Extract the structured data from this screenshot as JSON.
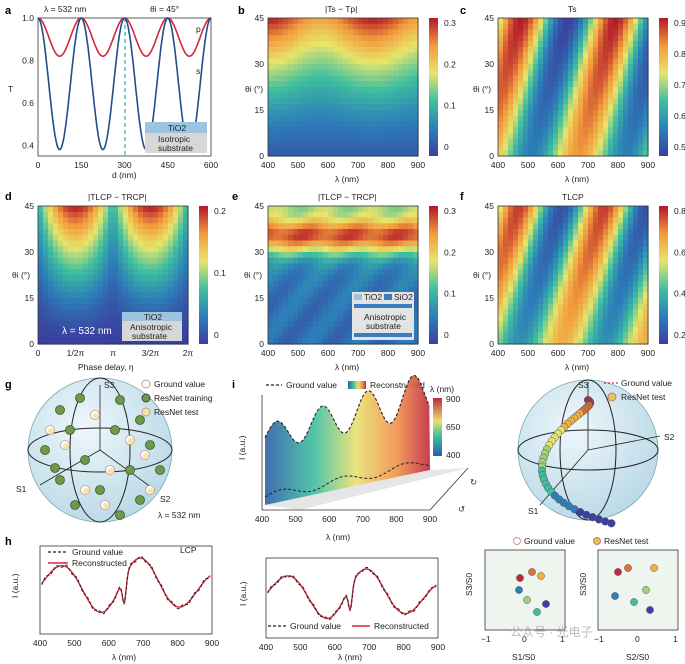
{
  "colors": {
    "red": "#d7263d",
    "blue": "#1f4e8c",
    "teal": "#2aa6a6",
    "ground": "#222222"
  },
  "panels": {
    "a": {
      "label": "a",
      "lambda_label": "λ = 532 nm",
      "theta_label": "θi = 45°",
      "ylabel": "T",
      "xlabel": "d (nm)",
      "curve_p": "p",
      "curve_s": "s",
      "box_top": "TiO2",
      "box_bottom_1": "Isotropic",
      "box_bottom_2": "substrate",
      "xticks": [
        "0",
        "150",
        "300",
        "450",
        "600"
      ],
      "yticks": [
        "0.4",
        "0.6",
        "0.8",
        "1.0"
      ]
    },
    "b": {
      "label": "b",
      "title": "|Ts − Tp|",
      "xlabel": "λ (nm)",
      "ylabel": "θi (°)",
      "xticks": [
        "400",
        "500",
        "600",
        "700",
        "800",
        "900"
      ],
      "yticks": [
        "0",
        "15",
        "30",
        "45"
      ],
      "cbticks": [
        "0.3",
        "0.2",
        "0.1",
        "0"
      ]
    },
    "c": {
      "label": "c",
      "title": "Ts",
      "xlabel": "λ (nm)",
      "ylabel": "θi (°)",
      "xticks": [
        "400",
        "500",
        "600",
        "700",
        "800",
        "900"
      ],
      "yticks": [
        "0",
        "15",
        "30",
        "45"
      ],
      "cbticks": [
        "0.9",
        "0.8",
        "0.7",
        "0.6",
        "0.5"
      ]
    },
    "d": {
      "label": "d",
      "title": "|TLCP − TRCP|",
      "xlabel": "Phase delay, η",
      "ylabel": "θi (°)",
      "lambda_label": "λ = 532 nm",
      "box_top": "TiO2",
      "box_bottom_1": "Anisotropic",
      "box_bottom_2": "substrate",
      "xticks": [
        "0",
        "1/2π",
        "π",
        "3/2π",
        "2π"
      ],
      "yticks": [
        "0",
        "15",
        "30",
        "45"
      ],
      "cbticks": [
        "0.2",
        "0.1",
        "0"
      ]
    },
    "e": {
      "label": "e",
      "title": "|TLCP − TRCP|",
      "xlabel": "λ (nm)",
      "ylabel": "θi (°)",
      "box_tio2": "TiO2",
      "box_sio2": "SiO2",
      "box_bottom_1": "Anisotropic",
      "box_bottom_2": "substrate",
      "xticks": [
        "400",
        "500",
        "600",
        "700",
        "800",
        "900"
      ],
      "yticks": [
        "0",
        "15",
        "30",
        "45"
      ],
      "cbticks": [
        "0.3",
        "0.2",
        "0.1",
        "0"
      ]
    },
    "f": {
      "label": "f",
      "title": "TLCP",
      "xlabel": "λ (nm)",
      "ylabel": "θi (°)",
      "xticks": [
        "400",
        "500",
        "600",
        "700",
        "800",
        "900"
      ],
      "yticks": [
        "0",
        "15",
        "30",
        "45"
      ],
      "cbticks": [
        "0.8",
        "0.6",
        "0.4",
        "0.2"
      ]
    },
    "g": {
      "label": "g",
      "s1": "S1",
      "s2": "S2",
      "s3": "S3",
      "legend": [
        "Ground value",
        "ResNet training",
        "ResNet test"
      ],
      "lambda_label": "λ = 532 nm"
    },
    "h": {
      "label": "h",
      "legend": [
        "Ground value",
        "Reconstructed"
      ],
      "tag": "LCP",
      "ylabel": "I (a.u.)",
      "xlabel": "λ (nm)",
      "xticks": [
        "400",
        "500",
        "600",
        "700",
        "800",
        "900"
      ]
    },
    "i": {
      "label": "i",
      "legend": [
        "Ground value",
        "Reconstructed"
      ],
      "cb_title": "λ (nm)",
      "cbticks": [
        "900",
        "650",
        "400"
      ],
      "ylabel": "I (a.u.)",
      "xlabel": "λ (nm)",
      "xticks": [
        "400",
        "500",
        "600",
        "700",
        "800",
        "900"
      ],
      "lower_legend": [
        "Ground value",
        "Reconstructed"
      ],
      "lower_xlabel": "λ (nm)",
      "lower_ylabel": "I (a.u.)",
      "lower_xticks": [
        "400",
        "500",
        "600",
        "700",
        "800",
        "900"
      ],
      "sphere_legend": [
        "Ground value",
        "ResNet test"
      ],
      "s1": "S1",
      "s2": "S2",
      "s3": "S3",
      "small_legend": [
        "Ground value",
        "ResNet test"
      ],
      "small1_xlabel": "S1/S0",
      "small1_ylabel": "S3/S0",
      "small2_xlabel": "S2/S0",
      "small2_ylabel": "S3/S0",
      "small_ticks": [
        "−1",
        "0",
        "1"
      ]
    }
  },
  "watermark": "公众号 · 光电子",
  "chart_data": [
    {
      "type": "line",
      "panel": "a",
      "title": "",
      "xlabel": "d (nm)",
      "ylabel": "T",
      "ylim": [
        0.35,
        1.0
      ],
      "xlim": [
        0,
        600
      ],
      "series": [
        {
          "name": "p",
          "amp": 0.18,
          "period": 150,
          "min": 0.82
        },
        {
          "name": "s",
          "amp": 0.62,
          "period": 150,
          "min": 0.38
        }
      ]
    },
    {
      "type": "heatmap",
      "panel": "b",
      "title": "|Ts − Tp|",
      "xlim": [
        400,
        900
      ],
      "ylim": [
        0,
        45
      ],
      "clim": [
        0,
        0.3
      ]
    },
    {
      "type": "heatmap",
      "panel": "c",
      "title": "Ts",
      "xlim": [
        400,
        900
      ],
      "ylim": [
        0,
        45
      ],
      "clim": [
        0.5,
        0.95
      ]
    },
    {
      "type": "heatmap",
      "panel": "d",
      "title": "|TLCP − TRCP|",
      "xlim": [
        0,
        6.283
      ],
      "ylim": [
        0,
        45
      ],
      "clim": [
        0,
        0.25
      ]
    },
    {
      "type": "heatmap",
      "panel": "e",
      "title": "|TLCP − TRCP|",
      "xlim": [
        400,
        900
      ],
      "ylim": [
        0,
        45
      ],
      "clim": [
        0,
        0.3
      ]
    },
    {
      "type": "heatmap",
      "panel": "f",
      "title": "TLCP",
      "xlim": [
        400,
        900
      ],
      "ylim": [
        0,
        45
      ],
      "clim": [
        0.2,
        0.85
      ]
    },
    {
      "type": "line",
      "panel": "h",
      "xlim": [
        400,
        900
      ],
      "series": [
        {
          "name": "Ground value"
        },
        {
          "name": "Reconstructed"
        }
      ]
    },
    {
      "type": "line",
      "panel": "i-lower",
      "xlim": [
        400,
        900
      ],
      "series": [
        {
          "name": "Ground value"
        },
        {
          "name": "Reconstructed"
        }
      ]
    }
  ]
}
